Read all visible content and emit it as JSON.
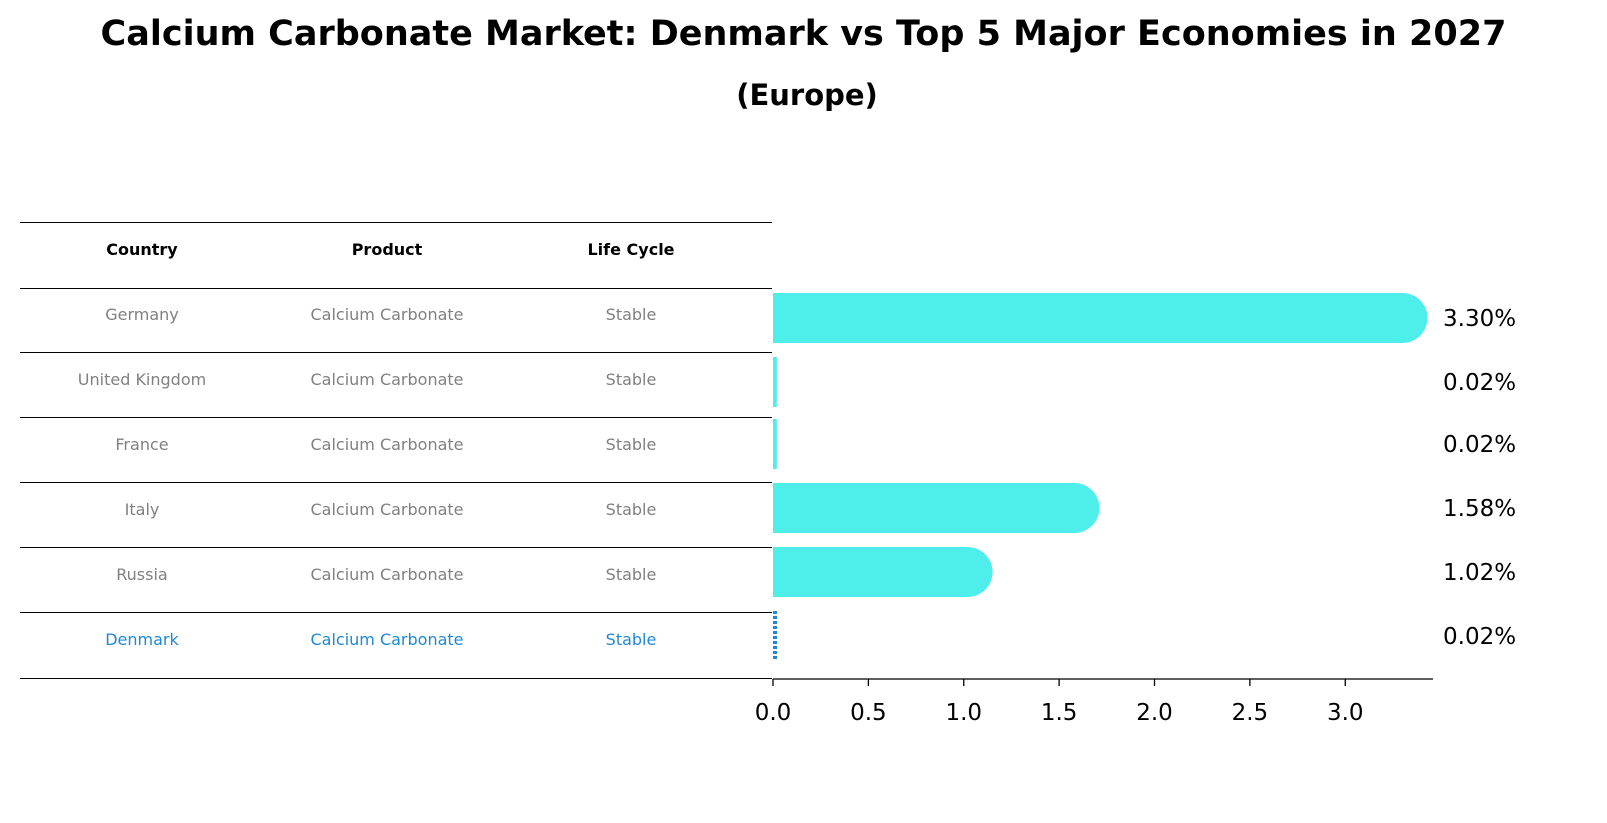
{
  "chart_data": {
    "type": "bar",
    "orientation": "horizontal",
    "title": "Calcium Carbonate Market: Denmark vs Top 5 Major Economies in 2027",
    "subtitle": "(Europe)",
    "table": {
      "columns": [
        "Country",
        "Product",
        "Life Cycle"
      ],
      "rows": [
        [
          "Germany",
          "Calcium Carbonate",
          "Stable"
        ],
        [
          "United Kingdom",
          "Calcium Carbonate",
          "Stable"
        ],
        [
          "France",
          "Calcium Carbonate",
          "Stable"
        ],
        [
          "Italy",
          "Calcium Carbonate",
          "Stable"
        ],
        [
          "Russia",
          "Calcium Carbonate",
          "Stable"
        ],
        [
          "Denmark",
          "Calcium Carbonate",
          "Stable"
        ]
      ],
      "highlight_row": 5
    },
    "categories": [
      "Germany",
      "United Kingdom",
      "France",
      "Italy",
      "Russia",
      "Denmark"
    ],
    "values": [
      3.3,
      0.02,
      0.02,
      1.58,
      1.02,
      0.02
    ],
    "value_labels": [
      "3.30%",
      "0.02%",
      "0.02%",
      "1.58%",
      "1.02%",
      "0.02%"
    ],
    "xlim": [
      0,
      3.46
    ],
    "xticks": [
      "0.0",
      "0.5",
      "1.0",
      "1.5",
      "2.0",
      "2.5",
      "3.0"
    ],
    "grid": false,
    "colors": {
      "bar": "#4eeeea",
      "highlight": "#1f88d6",
      "row_text": "#808080"
    }
  }
}
